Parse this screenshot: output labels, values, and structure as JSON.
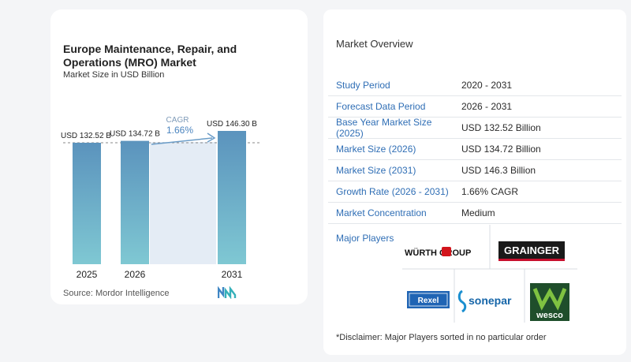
{
  "chart_data": {
    "type": "bar",
    "title": "Europe Maintenance, Repair, and Operations (MRO) Market",
    "subtitle": "Market Size in USD Billion",
    "categories": [
      "2025",
      "2026",
      "2031"
    ],
    "values": [
      132.52,
      134.72,
      146.3
    ],
    "data_labels": [
      "USD 132.52 B",
      "USD 134.72 B",
      "USD 146.30 B"
    ],
    "cagr_label": "CAGR",
    "cagr_value": "1.66%",
    "source": "Source:  Mordor Intelligence",
    "bar_color_top": "#5b93bd",
    "bar_color_bottom": "#7fc8d3"
  },
  "overview": {
    "title": "Market Overview",
    "rows": [
      {
        "key": "Study Period",
        "value": "2020 - 2031"
      },
      {
        "key": "Forecast Data Period",
        "value": "2026 - 2031"
      },
      {
        "key": "Base Year Market Size (2025)",
        "value": "USD 132.52 Billion"
      },
      {
        "key": "Market Size (2026)",
        "value": "USD 134.72 Billion"
      },
      {
        "key": "Market Size (2031)",
        "value": "USD 146.3 Billion"
      },
      {
        "key": "Growth Rate (2026 - 2031)",
        "value": "1.66% CAGR"
      },
      {
        "key": "Market Concentration",
        "value": "Medium"
      }
    ],
    "major_players_label": "Major Players",
    "players": [
      {
        "name": "WÜRTH GROUP",
        "icon": "wurth-logo"
      },
      {
        "name": "GRAINGER",
        "icon": "grainger-logo"
      },
      {
        "name": "Rexel",
        "icon": "rexel-logo"
      },
      {
        "name": "sonepar",
        "icon": "sonepar-logo"
      },
      {
        "name": "wesco",
        "icon": "wesco-logo"
      }
    ],
    "disclaimer": "*Disclaimer: Major Players sorted in no particular order"
  }
}
